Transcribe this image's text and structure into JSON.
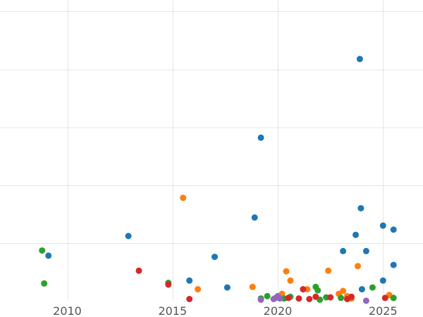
{
  "chart_data": {
    "type": "scatter",
    "title": "",
    "xlabel": "",
    "ylabel": "",
    "xlim": [
      2006.8,
      2026.9
    ],
    "ylim": [
      0,
      5.2
    ],
    "x_ticks": [
      2010,
      2015,
      2020,
      2025
    ],
    "y_gridlines": [
      1,
      2,
      3,
      4,
      5
    ],
    "grid": true,
    "legend": "none",
    "series": [
      {
        "color": "#1f77b4",
        "points": [
          [
            2009.1,
            0.78
          ],
          [
            2012.9,
            1.12
          ],
          [
            2015.8,
            0.35
          ],
          [
            2017.0,
            0.76
          ],
          [
            2017.6,
            0.23
          ],
          [
            2018.9,
            1.44
          ],
          [
            2019.2,
            2.82
          ],
          [
            2023.1,
            0.86
          ],
          [
            2023.7,
            1.14
          ],
          [
            2023.9,
            4.18
          ],
          [
            2023.95,
            1.6
          ],
          [
            2024.0,
            0.2
          ],
          [
            2024.2,
            0.86
          ],
          [
            2025.0,
            1.3
          ],
          [
            2025.0,
            0.35
          ],
          [
            2025.5,
            1.23
          ],
          [
            2025.5,
            0.62
          ]
        ]
      },
      {
        "color": "#ff7f0e",
        "points": [
          [
            2015.5,
            1.78
          ],
          [
            2016.2,
            0.2
          ],
          [
            2018.8,
            0.24
          ],
          [
            2020.2,
            0.12
          ],
          [
            2020.4,
            0.51
          ],
          [
            2020.6,
            0.35
          ],
          [
            2021.4,
            0.2
          ],
          [
            2022.4,
            0.52
          ],
          [
            2022.9,
            0.12
          ],
          [
            2023.1,
            0.17
          ],
          [
            2023.3,
            0.08
          ],
          [
            2023.5,
            0.04
          ],
          [
            2023.8,
            0.6
          ],
          [
            2025.3,
            0.1
          ],
          [
            2025.5,
            0.05
          ]
        ]
      },
      {
        "color": "#2ca02c",
        "points": [
          [
            2008.8,
            0.87
          ],
          [
            2008.9,
            0.3
          ],
          [
            2014.8,
            0.31
          ],
          [
            2019.2,
            0.04
          ],
          [
            2019.5,
            0.08
          ],
          [
            2020.3,
            0.04
          ],
          [
            2020.6,
            0.07
          ],
          [
            2021.8,
            0.24
          ],
          [
            2021.9,
            0.18
          ],
          [
            2022.0,
            0.02
          ],
          [
            2022.3,
            0.06
          ],
          [
            2023.0,
            0.05
          ],
          [
            2024.5,
            0.23
          ],
          [
            2025.5,
            0.05
          ]
        ]
      },
      {
        "color": "#d62728",
        "points": [
          [
            2013.4,
            0.52
          ],
          [
            2014.8,
            0.28
          ],
          [
            2015.8,
            0.03
          ],
          [
            2020.5,
            0.05
          ],
          [
            2021.0,
            0.04
          ],
          [
            2021.2,
            0.2
          ],
          [
            2021.5,
            0.03
          ],
          [
            2021.8,
            0.07
          ],
          [
            2022.5,
            0.06
          ],
          [
            2023.3,
            0.03
          ],
          [
            2023.5,
            0.07
          ],
          [
            2025.1,
            0.05
          ]
        ]
      },
      {
        "color": "#9467bd",
        "points": [
          [
            2019.2,
            0.02
          ],
          [
            2019.8,
            0.03
          ],
          [
            2019.9,
            0.05
          ],
          [
            2020.0,
            0.08
          ],
          [
            2020.1,
            0.04
          ],
          [
            2024.2,
            0.0
          ]
        ]
      }
    ]
  }
}
